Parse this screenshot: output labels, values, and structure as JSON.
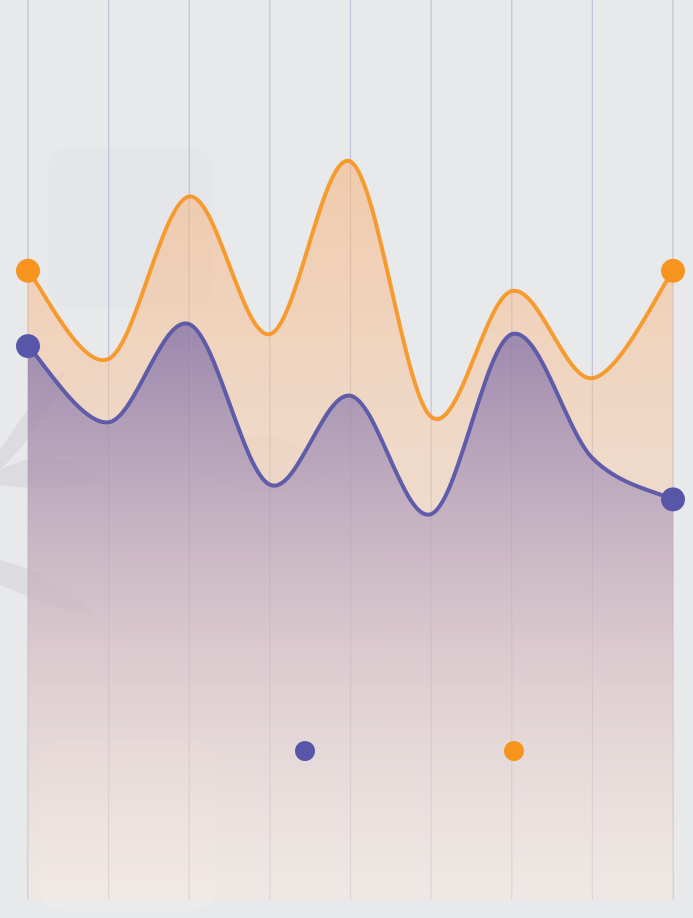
{
  "chart_data": {
    "type": "area",
    "title": "",
    "xlabel": "",
    "ylabel": "",
    "x": [
      0,
      1,
      2,
      3,
      4,
      5,
      6,
      7,
      8
    ],
    "xlim": [
      0,
      8
    ],
    "ylim": [
      0,
      100
    ],
    "grid": {
      "vertical": true,
      "horizontal": false
    },
    "legend": {
      "position": "bottom-center",
      "entries": [
        {
          "series": "purple",
          "color": "#5856a8"
        },
        {
          "series": "orange",
          "color": "#f7941e"
        }
      ]
    },
    "series": [
      {
        "color": "#f7941e",
        "values": [
          70.5,
          60.9,
          78.6,
          63.6,
          82.4,
          54.6,
          68.3,
          58.8,
          70.5
        ]
      },
      {
        "color": "#5856a8",
        "values": [
          62.3,
          54.0,
          64.7,
          47.2,
          56.9,
          44.0,
          63.6,
          50.1,
          45.6
        ]
      }
    ]
  }
}
